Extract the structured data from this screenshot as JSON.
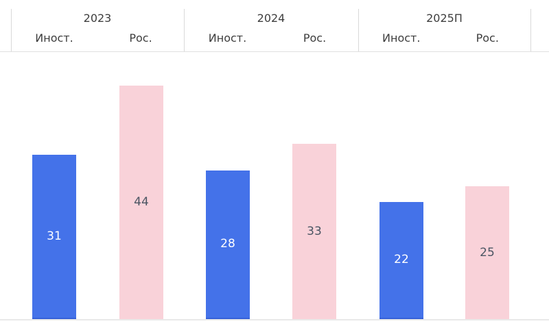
{
  "chart_data": {
    "type": "bar",
    "title": "",
    "categories": [
      "2023",
      "2024",
      "2025П"
    ],
    "series": [
      {
        "name": "Иност.",
        "color": "#4472E9",
        "values": [
          31,
          28,
          22
        ]
      },
      {
        "name": "Рос.",
        "color": "#F9D2D9",
        "values": [
          44,
          33,
          25
        ]
      }
    ],
    "value_labels_shown": true,
    "value_label_position": "center-of-bar",
    "axes": {
      "y_axis_visible": false,
      "x_tick_labels": "grouped headers above chart",
      "baseline_visible": true
    },
    "legend_position": "column-headers-above-each-group",
    "ylim": [
      0,
      50
    ]
  },
  "header": {
    "columns": [
      {
        "year": "2023",
        "left_label": "Иност.",
        "right_label": "Рос."
      },
      {
        "year": "2024",
        "left_label": "Иност.",
        "right_label": "Рос."
      },
      {
        "year": "2025П",
        "left_label": "Иност.",
        "right_label": "Рос."
      }
    ]
  },
  "colors": {
    "foreign_bar": "#4472E9",
    "domestic_bar": "#F9D2D9",
    "bar_label_on_blue": "#FFFFFF",
    "bar_label_on_pink": "#4B5563",
    "header_text": "#3D3D3D",
    "separator": "#D9D9D9",
    "header_divider": "#E0E0E0",
    "baseline": "#E9E9E9"
  }
}
